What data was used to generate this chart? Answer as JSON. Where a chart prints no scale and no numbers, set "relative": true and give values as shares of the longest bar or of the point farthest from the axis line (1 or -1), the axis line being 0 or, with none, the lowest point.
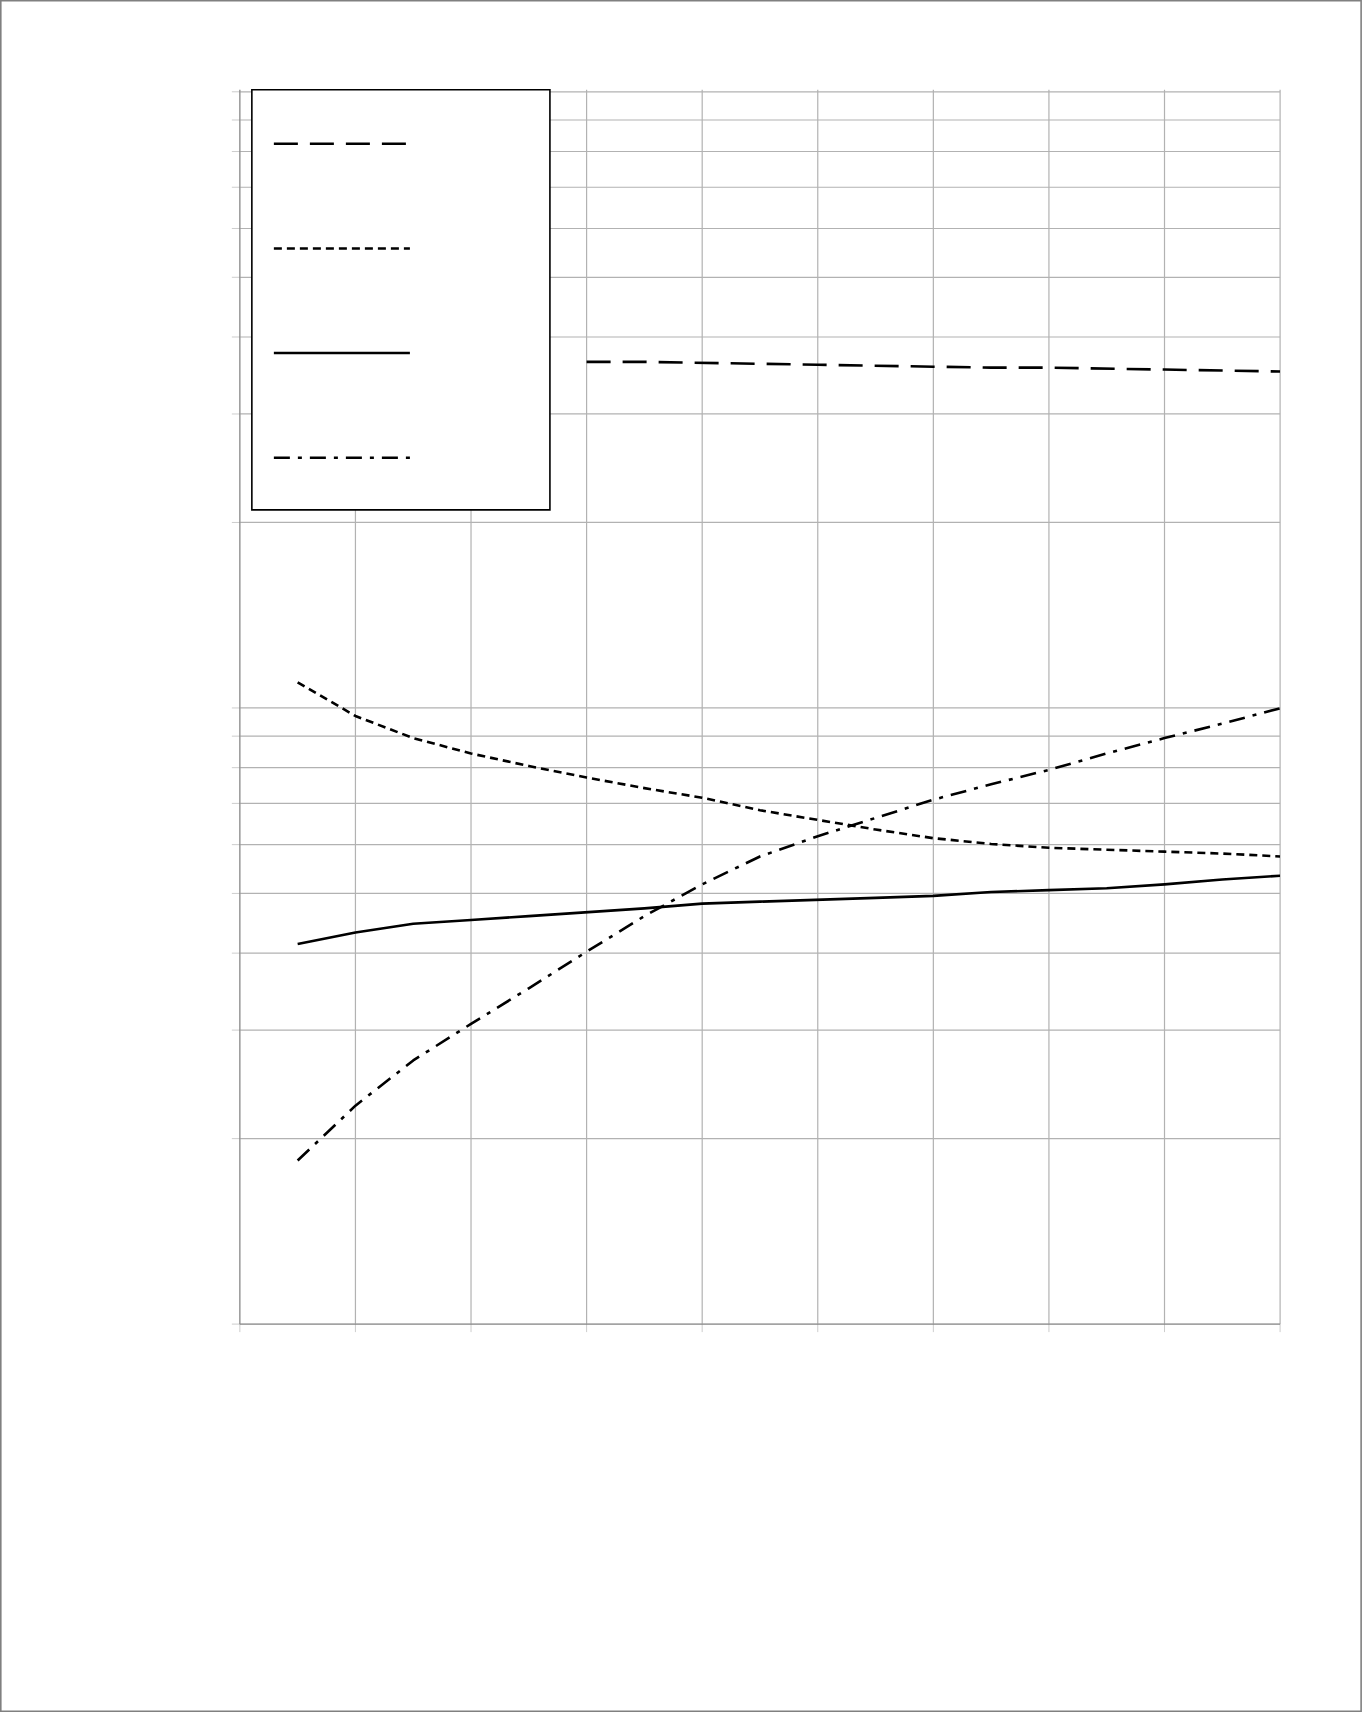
{
  "chart_data": {
    "type": "line",
    "relative": true,
    "grid": true,
    "categories": [
      null,
      null,
      null,
      null,
      null,
      null,
      null,
      null,
      null,
      null,
      null,
      null,
      null,
      null,
      null,
      null,
      null,
      null
    ],
    "series": [
      {
        "color": "#000000",
        "line_style": "dashed",
        "values": [
          null,
          null,
          null,
          null,
          null,
          1.0,
          1.0,
          0.999,
          0.998,
          0.997,
          0.996,
          0.995,
          0.994,
          0.994,
          0.993,
          0.992,
          0.991,
          0.99
        ]
      },
      {
        "color": "#000000",
        "line_style": "dotted",
        "values": [
          0.667,
          0.632,
          0.609,
          0.593,
          0.58,
          0.568,
          0.557,
          0.547,
          0.534,
          0.524,
          0.514,
          0.505,
          0.499,
          0.495,
          0.493,
          0.491,
          0.489,
          0.486
        ]
      },
      {
        "color": "#000000",
        "line_style": "solid",
        "values": [
          0.395,
          0.407,
          0.416,
          0.42,
          0.424,
          0.428,
          0.432,
          0.437,
          0.439,
          0.441,
          0.443,
          0.445,
          0.449,
          0.451,
          0.453,
          0.457,
          0.462,
          0.466
        ]
      },
      {
        "color": "#000000",
        "line_style": "dashdot",
        "values": [
          0.17,
          0.227,
          0.274,
          0.312,
          0.349,
          0.387,
          0.424,
          0.457,
          0.486,
          0.507,
          0.526,
          0.545,
          0.561,
          0.576,
          0.593,
          0.609,
          0.624,
          0.64
        ]
      }
    ]
  }
}
